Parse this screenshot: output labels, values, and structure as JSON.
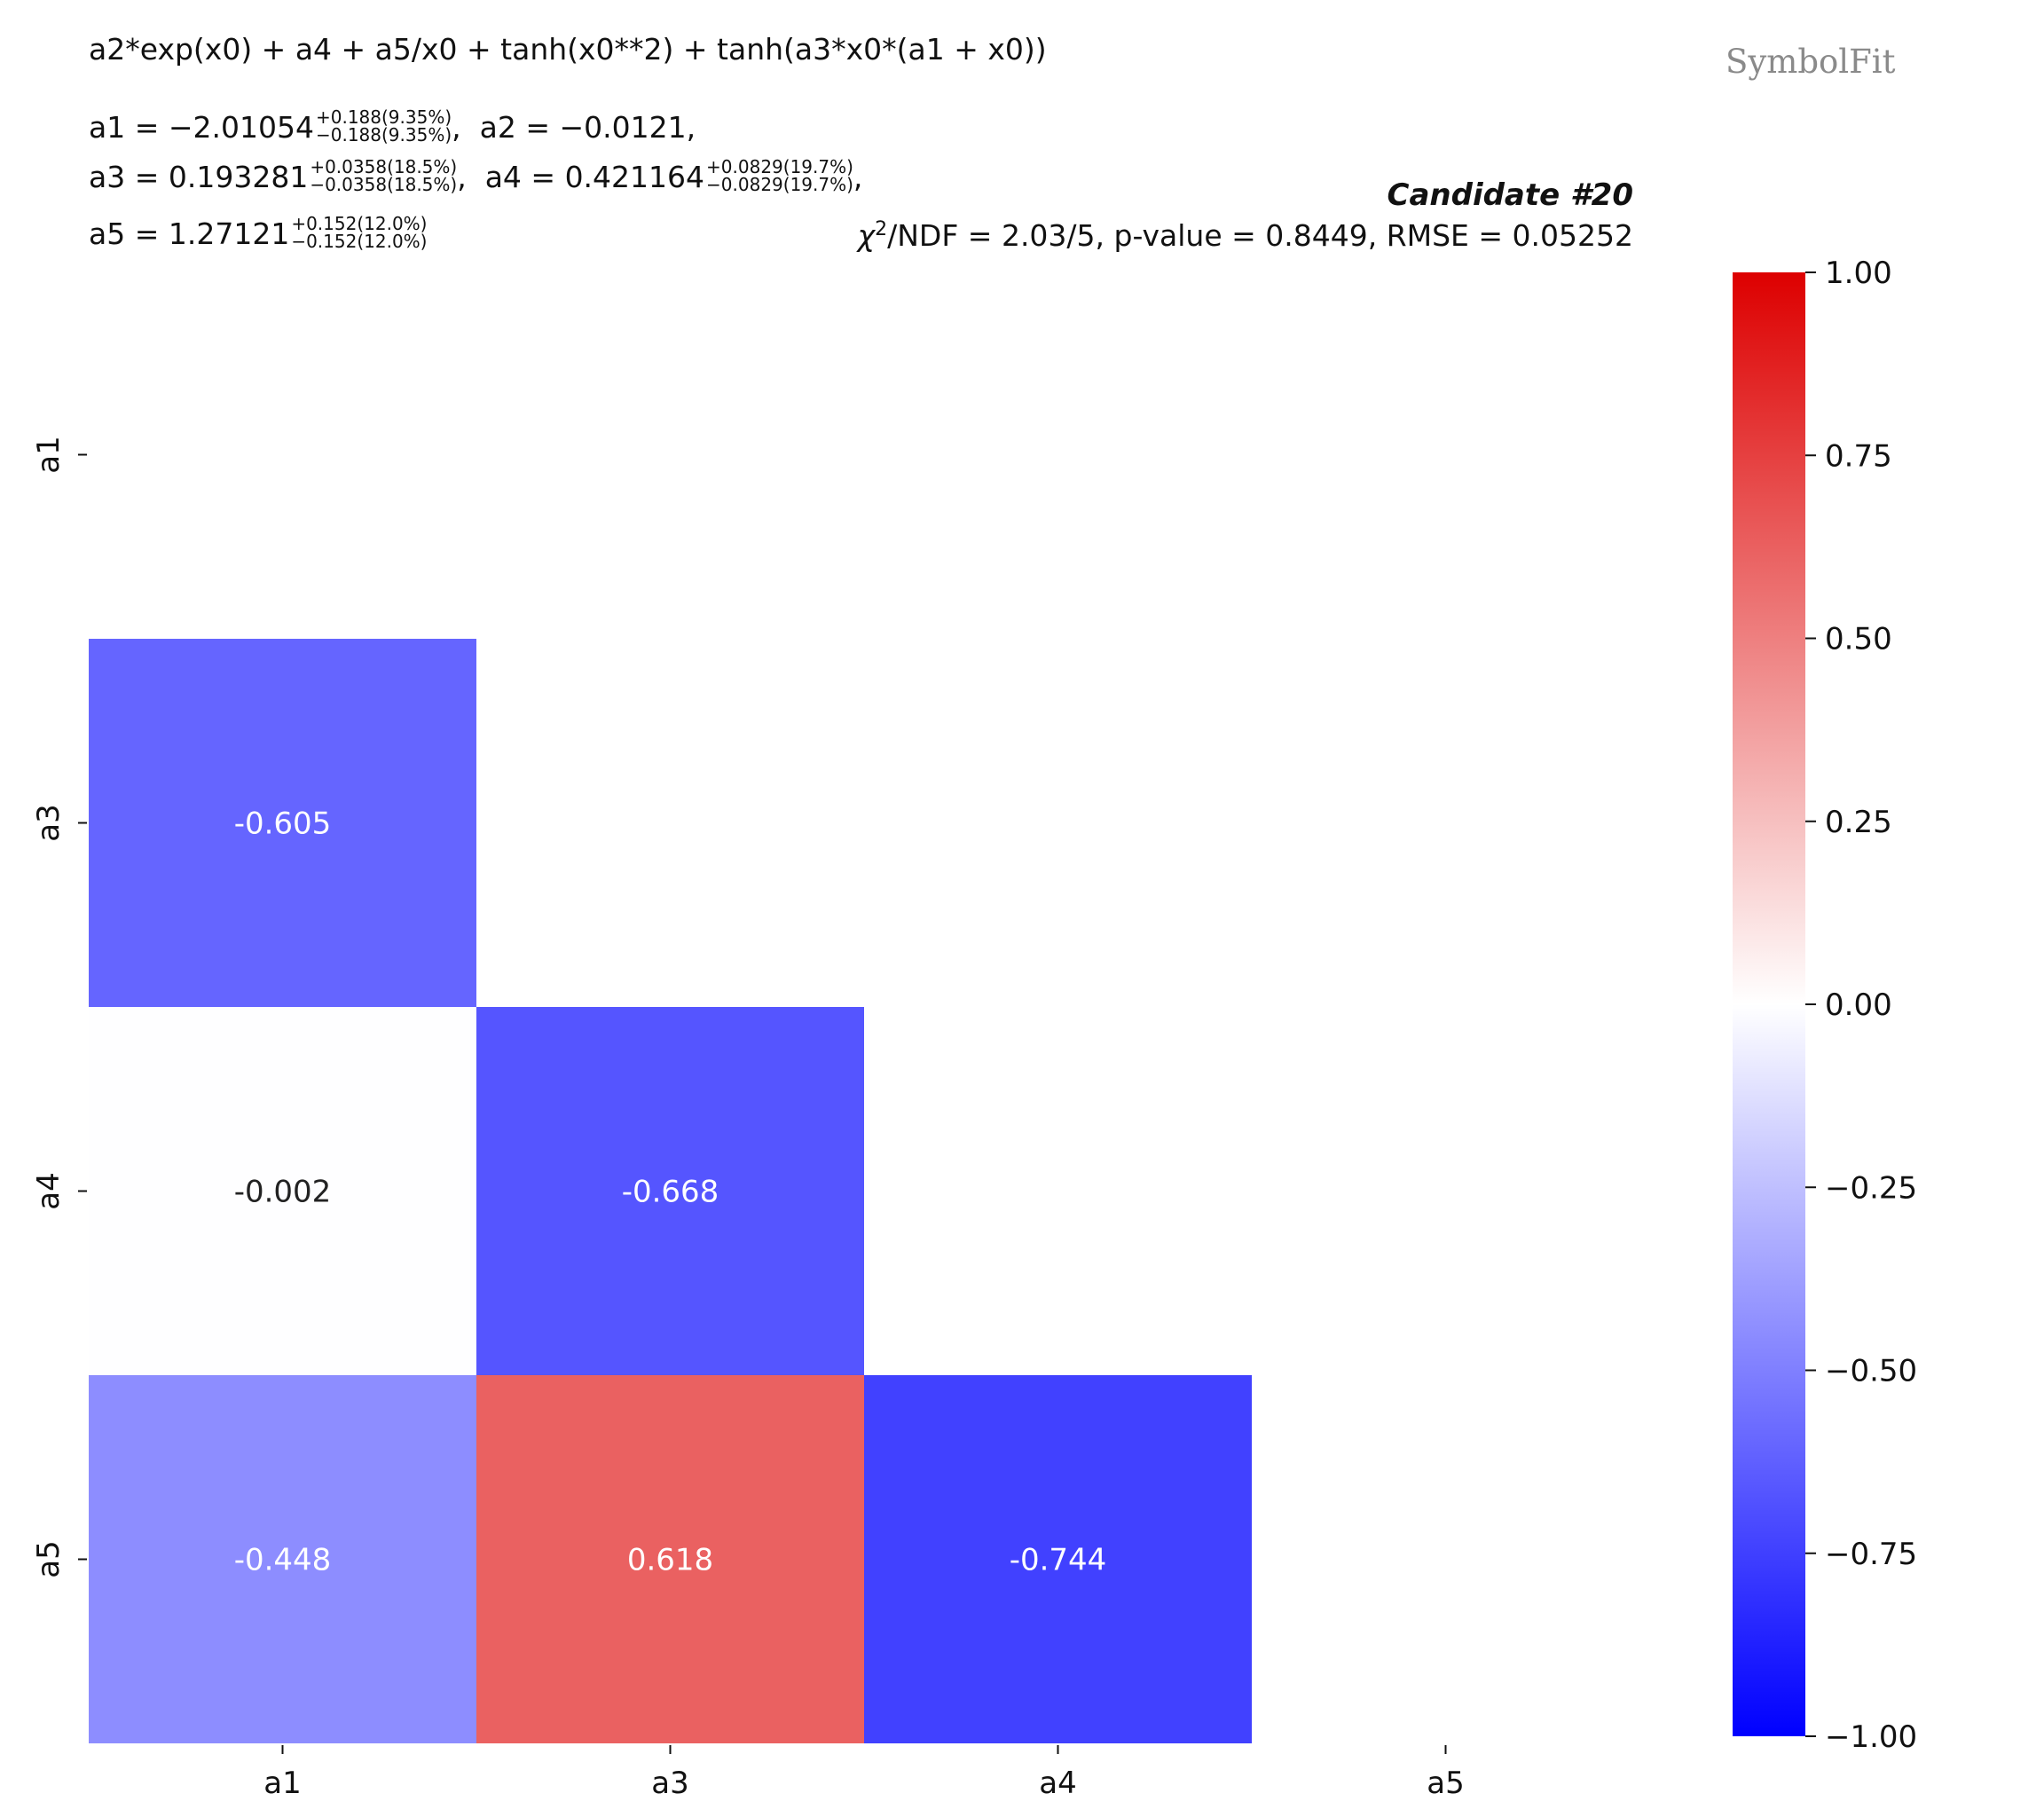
{
  "expression": "a2*exp(x0) + a4 + a5/x0 + tanh(x0**2) + tanh(a3*x0*(a1 + x0))",
  "params": [
    {
      "label": "a1",
      "value": "−2.01054",
      "up": "+0.188(9.35%)",
      "down": "−0.188(9.35%)"
    },
    {
      "label": "a2",
      "value": "−0.0121",
      "up": "",
      "down": ""
    },
    {
      "label": "a3",
      "value": "0.193281",
      "up": "+0.0358(18.5%)",
      "down": "−0.0358(18.5%)"
    },
    {
      "label": "a4",
      "value": "0.421164",
      "up": "+0.0829(19.7%)",
      "down": "−0.0829(19.7%)"
    },
    {
      "label": "a5",
      "value": "1.27121",
      "up": "+0.152(12.0%)",
      "down": "−0.152(12.0%)"
    }
  ],
  "candidate": "Candidate #20",
  "stats": {
    "chi2_symbol": "χ",
    "chi2_sup": "2",
    "rest": "/NDF = 2.03/5, p-value = 0.8449, RMSE = 0.05252"
  },
  "watermark": "SymbolFit",
  "colors": {
    "neg": "#0000ff",
    "zero": "#ffffff",
    "pos": "#dd0000"
  },
  "chart_data": {
    "type": "heatmap",
    "title": "Candidate #20",
    "x_labels": [
      "a1",
      "a3",
      "a4",
      "a5"
    ],
    "y_labels": [
      "a1",
      "a3",
      "a4",
      "a5"
    ],
    "values": [
      [
        null,
        null,
        null,
        null
      ],
      [
        -0.605,
        null,
        null,
        null
      ],
      [
        -0.002,
        -0.668,
        null,
        null
      ],
      [
        -0.448,
        0.618,
        -0.744,
        null
      ]
    ],
    "cell_labels": [
      [
        null,
        null,
        null,
        null
      ],
      [
        "-0.605",
        null,
        null,
        null
      ],
      [
        "-0.002",
        "-0.668",
        null,
        null
      ],
      [
        "-0.448",
        "0.618",
        "-0.744",
        null
      ]
    ],
    "colorbar": {
      "range": [
        -1.0,
        1.0
      ],
      "ticks": [
        1.0,
        0.75,
        0.5,
        0.25,
        0.0,
        -0.25,
        -0.5,
        -0.75,
        -1.0
      ],
      "tick_labels": [
        "1.00",
        "0.75",
        "0.50",
        "0.25",
        "0.00",
        "−0.25",
        "−0.50",
        "−0.75",
        "−1.00"
      ]
    }
  }
}
